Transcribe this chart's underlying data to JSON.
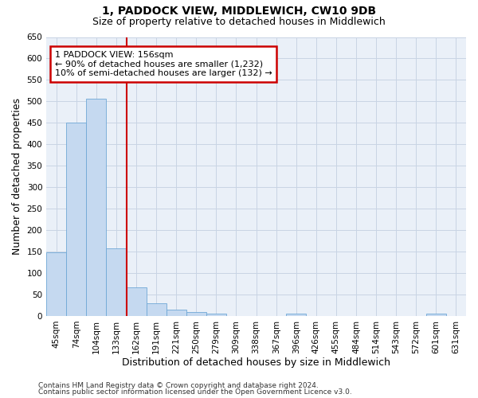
{
  "title": "1, PADDOCK VIEW, MIDDLEWICH, CW10 9DB",
  "subtitle": "Size of property relative to detached houses in Middlewich",
  "xlabel": "Distribution of detached houses by size in Middlewich",
  "ylabel": "Number of detached properties",
  "footer_line1": "Contains HM Land Registry data © Crown copyright and database right 2024.",
  "footer_line2": "Contains public sector information licensed under the Open Government Licence v3.0.",
  "bar_labels": [
    "45sqm",
    "74sqm",
    "104sqm",
    "133sqm",
    "162sqm",
    "191sqm",
    "221sqm",
    "250sqm",
    "279sqm",
    "309sqm",
    "338sqm",
    "367sqm",
    "396sqm",
    "426sqm",
    "455sqm",
    "484sqm",
    "514sqm",
    "543sqm",
    "572sqm",
    "601sqm",
    "631sqm"
  ],
  "bar_values": [
    148,
    450,
    507,
    158,
    67,
    30,
    14,
    9,
    5,
    0,
    0,
    0,
    6,
    0,
    0,
    0,
    0,
    0,
    0,
    6,
    0
  ],
  "bar_color": "#c5d9f0",
  "bar_edge_color": "#6fa8d6",
  "plot_bg_color": "#eaf0f8",
  "fig_bg_color": "#ffffff",
  "grid_color": "#c8d4e4",
  "annotation_text": "1 PADDOCK VIEW: 156sqm\n← 90% of detached houses are smaller (1,232)\n10% of semi-detached houses are larger (132) →",
  "annotation_box_facecolor": "#ffffff",
  "annotation_box_edgecolor": "#cc0000",
  "vline_x": 4.0,
  "vline_color": "#cc0000",
  "ylim": [
    0,
    650
  ],
  "yticks": [
    0,
    50,
    100,
    150,
    200,
    250,
    300,
    350,
    400,
    450,
    500,
    550,
    600,
    650
  ],
  "title_fontsize": 10,
  "subtitle_fontsize": 9,
  "axis_label_fontsize": 9,
  "tick_fontsize": 7.5,
  "annotation_fontsize": 8,
  "footer_fontsize": 6.5
}
